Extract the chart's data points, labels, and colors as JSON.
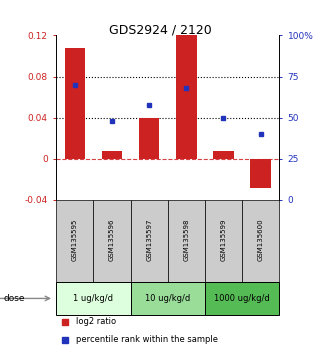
{
  "title": "GDS2924 / 2120",
  "samples": [
    "GSM135595",
    "GSM135596",
    "GSM135597",
    "GSM135598",
    "GSM135599",
    "GSM135600"
  ],
  "log2_ratio": [
    0.108,
    0.008,
    0.04,
    0.12,
    0.008,
    -0.028
  ],
  "percentile_rank": [
    70,
    48,
    58,
    68,
    50,
    40
  ],
  "bar_color": "#cc2222",
  "dot_color": "#2233bb",
  "ylim_left": [
    -0.04,
    0.12
  ],
  "ylim_right": [
    0,
    100
  ],
  "yticks_left": [
    -0.04,
    0,
    0.04,
    0.08,
    0.12
  ],
  "yticks_right": [
    0,
    25,
    50,
    75,
    100
  ],
  "ytick_labels_left": [
    "-0.04",
    "0",
    "0.04",
    "0.08",
    "0.12"
  ],
  "ytick_labels_right": [
    "0",
    "25",
    "50",
    "75",
    "100%"
  ],
  "hlines": [
    0.04,
    0.08
  ],
  "dose_groups": [
    {
      "label": "1 ug/kg/d",
      "spans": [
        0,
        2
      ],
      "color": "#ddffdd"
    },
    {
      "label": "10 ug/kg/d",
      "spans": [
        2,
        4
      ],
      "color": "#99dd99"
    },
    {
      "label": "1000 ug/kg/d",
      "spans": [
        4,
        6
      ],
      "color": "#55bb55"
    }
  ],
  "sample_bg_color": "#cccccc",
  "legend_red_label": "log2 ratio",
  "legend_blue_label": "percentile rank within the sample",
  "dose_label": "dose",
  "left_label_color": "#cc2222",
  "right_label_color": "#2233bb"
}
